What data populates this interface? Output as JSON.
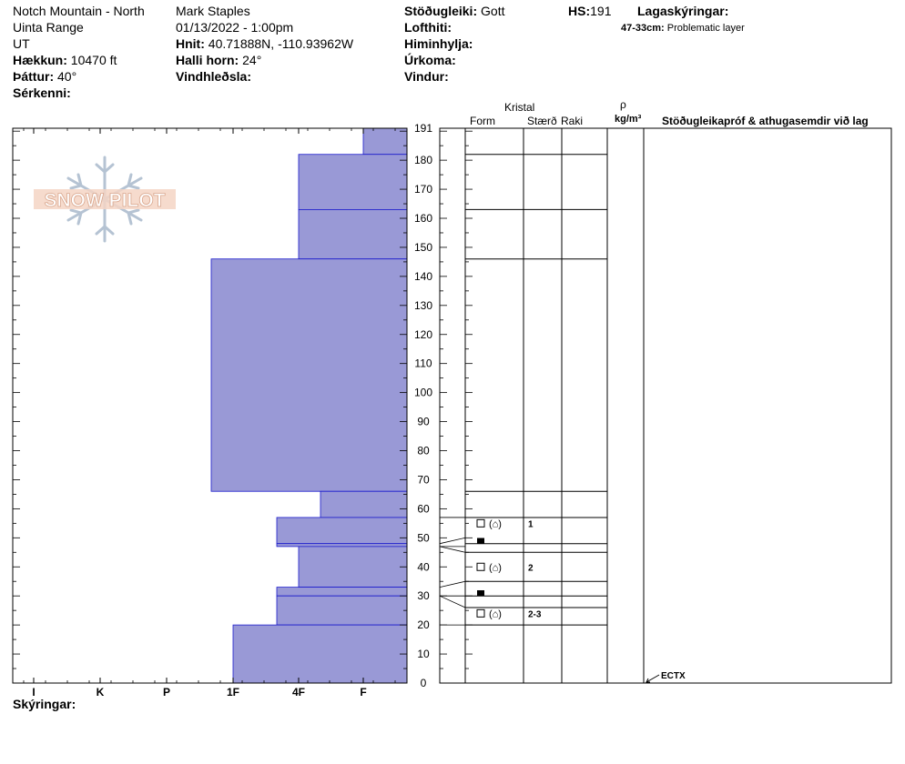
{
  "header": {
    "location_line1": "Notch Mountain - North",
    "location_line2": "Uinta Range",
    "location_line3": "UT",
    "elevation_label": "Hækkun:",
    "elevation_value": "10470 ft",
    "aspect_label": "Þáttur:",
    "aspect_value": "40°",
    "features_label": "Sérkenni:",
    "observer": "Mark Staples",
    "datetime": "01/13/2022 - 1:00pm",
    "coords_label": "Hnit:",
    "coords_value": "40.71888N, -110.93962W",
    "slope_label": "Halli horn:",
    "slope_value": "24°",
    "wind_loading_label": "Vindhleðsla:",
    "stability_label": "Stöðugleiki:",
    "stability_value": "Gott",
    "air_temp_label": "Lofthiti:",
    "sky_label": "Himinhylja:",
    "precip_label": "Úrkoma:",
    "wind_label": "Vindur:",
    "hs_label": "HS:",
    "hs_value": "191",
    "layer_notes_label": "Lagaskýringar:",
    "layer_note_range": "47-33cm:",
    "layer_note_text": "Problematic layer"
  },
  "columns": {
    "crystal": "Kristal",
    "form": "Form",
    "size": "Stærð",
    "moisture": "Raki",
    "rho": "ρ",
    "density_unit": "kg/m³",
    "tests": "Stöðugleikapróf & athugasemdir við lag"
  },
  "legend_label": "Skýringar:",
  "logo_text": "SNOW PILOT",
  "chart_data": {
    "type": "bar",
    "title": "",
    "y_axis": {
      "min": 0,
      "max": 191,
      "tick_labels": [
        "0",
        "10",
        "20",
        "30",
        "40",
        "50",
        "60",
        "70",
        "80",
        "90",
        "100",
        "110",
        "120",
        "130",
        "140",
        "150",
        "160",
        "170",
        "180",
        "191"
      ]
    },
    "hardness_scale": [
      "I",
      "K",
      "P",
      "1F",
      "4F",
      "F"
    ],
    "layers": [
      {
        "top": 191,
        "bottom": 182,
        "hardness": "F"
      },
      {
        "top": 182,
        "bottom": 163,
        "hardness": "4F"
      },
      {
        "top": 163,
        "bottom": 146,
        "hardness": "4F"
      },
      {
        "top": 146,
        "bottom": 66,
        "hardness": "1F+"
      },
      {
        "top": 66,
        "bottom": 57,
        "hardness": "4F-"
      },
      {
        "top": 57,
        "bottom": 48,
        "hardness": "4F+"
      },
      {
        "top": 48,
        "bottom": 47,
        "hardness": "4F+"
      },
      {
        "top": 47,
        "bottom": 33,
        "hardness": "4F"
      },
      {
        "top": 33,
        "bottom": 30,
        "hardness": "4F+"
      },
      {
        "top": 30,
        "bottom": 20,
        "hardness": "4F+"
      },
      {
        "top": 20,
        "bottom": 0,
        "hardness": "1F"
      }
    ],
    "layer_lines": [
      191,
      182,
      163,
      146,
      66,
      57,
      48,
      45,
      35,
      30,
      26,
      20
    ],
    "grain_rows": [
      {
        "y": 55,
        "kind": "facet",
        "size": "1"
      },
      {
        "y": 49,
        "kind": "crust",
        "size": ""
      },
      {
        "y": 40,
        "kind": "facet",
        "size": "2"
      },
      {
        "y": 31,
        "kind": "crust",
        "size": ""
      },
      {
        "y": 24,
        "kind": "facet",
        "size": "2-3"
      }
    ],
    "stability_tests": [
      {
        "depth": 0,
        "result": "ECTX"
      }
    ]
  }
}
